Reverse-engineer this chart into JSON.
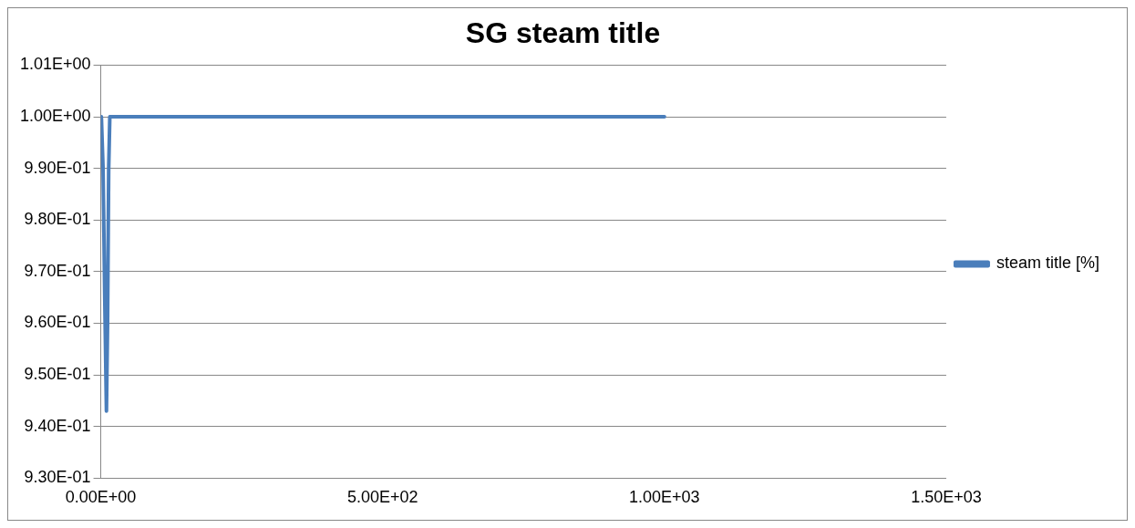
{
  "chart_data": {
    "type": "line",
    "title": "SG steam title",
    "series": [
      {
        "name": "steam title [%]",
        "color": "#4a7ebb",
        "x": [
          1,
          4,
          7,
          10,
          12,
          14,
          16,
          1000
        ],
        "values": [
          1.0,
          0.99,
          0.965,
          0.943,
          0.96,
          0.99,
          1.0,
          1.0
        ]
      }
    ],
    "xlim": [
      0,
      1500
    ],
    "xticks": [
      {
        "value": 0,
        "label": "0.00E+00"
      },
      {
        "value": 500,
        "label": "5.00E+02"
      },
      {
        "value": 1000,
        "label": "1.00E+03"
      },
      {
        "value": 1500,
        "label": "1.50E+03"
      }
    ],
    "ylim": [
      0.93,
      1.01
    ],
    "yticks": [
      {
        "value": 0.93,
        "label": "9.30E-01"
      },
      {
        "value": 0.94,
        "label": "9.40E-01"
      },
      {
        "value": 0.95,
        "label": "9.50E-01"
      },
      {
        "value": 0.96,
        "label": "9.60E-01"
      },
      {
        "value": 0.97,
        "label": "9.70E-01"
      },
      {
        "value": 0.98,
        "label": "9.80E-01"
      },
      {
        "value": 0.99,
        "label": "9.90E-01"
      },
      {
        "value": 1.0,
        "label": "1.00E+00"
      },
      {
        "value": 1.01,
        "label": "1.01E+00"
      }
    ],
    "grid": "y",
    "legend": "right",
    "marker": "none",
    "line_style": "solid"
  }
}
